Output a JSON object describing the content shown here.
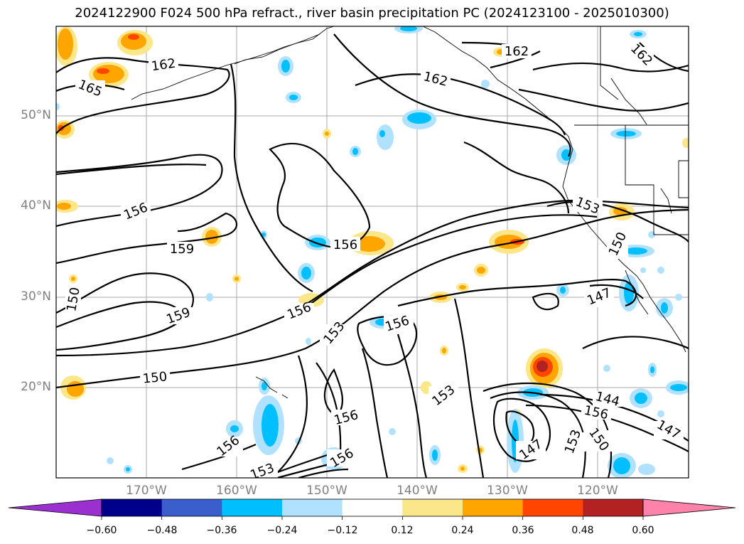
{
  "title": "2024122900 F024 500 hPa refract., river basin precipitation PC (2024123100 - 2025010300)",
  "map": {
    "lat_labels": [
      "50°N",
      "40°N",
      "30°N",
      "20°N"
    ],
    "lon_labels": [
      "170°W",
      "160°W",
      "150°W",
      "140°W",
      "130°W",
      "120°W"
    ],
    "contour_labels": [
      "162",
      "165",
      "162",
      "162",
      "162",
      "156",
      "159",
      "159",
      "150",
      "156",
      "156",
      "153",
      "156",
      "150",
      "153",
      "150",
      "147",
      "153",
      "156",
      "150",
      "153",
      "147",
      "144",
      "147",
      "156",
      "153",
      "156",
      "156"
    ]
  },
  "colorbar": {
    "tick_labels": [
      "−0.60",
      "−0.48",
      "−0.36",
      "−0.24",
      "−0.12",
      "0.12",
      "0.24",
      "0.36",
      "0.48",
      "0.60"
    ],
    "colors": [
      "#9b30d0",
      "#00008b",
      "#3a5fcd",
      "#00bfff",
      "#b0e2ff",
      "#ffffff",
      "#fce68a",
      "#ffa500",
      "#ff4500",
      "#b22222",
      "#ff82ab"
    ]
  }
}
